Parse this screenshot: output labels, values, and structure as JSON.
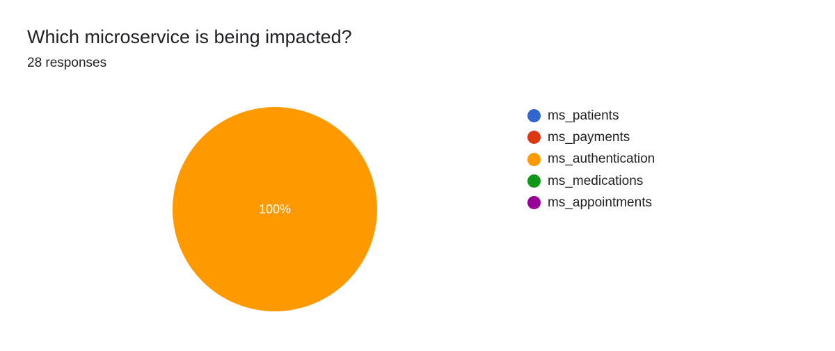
{
  "question": {
    "title": "Which microservice is being impacted?",
    "responses": "28 responses"
  },
  "colors": {
    "ms_patients": "#3366cc",
    "ms_payments": "#dc3912",
    "ms_authentication": "#ff9900",
    "ms_medications": "#109618",
    "ms_appointments": "#990099"
  },
  "chart_data": {
    "type": "pie",
    "legend_position": "right",
    "slices": [
      {
        "label": "ms_patients",
        "value": 0,
        "percent_label": ""
      },
      {
        "label": "ms_payments",
        "value": 0,
        "percent_label": ""
      },
      {
        "label": "ms_authentication",
        "value": 100,
        "percent_label": "100%"
      },
      {
        "label": "ms_medications",
        "value": 0,
        "percent_label": ""
      },
      {
        "label": "ms_appointments",
        "value": 0,
        "percent_label": ""
      }
    ]
  }
}
